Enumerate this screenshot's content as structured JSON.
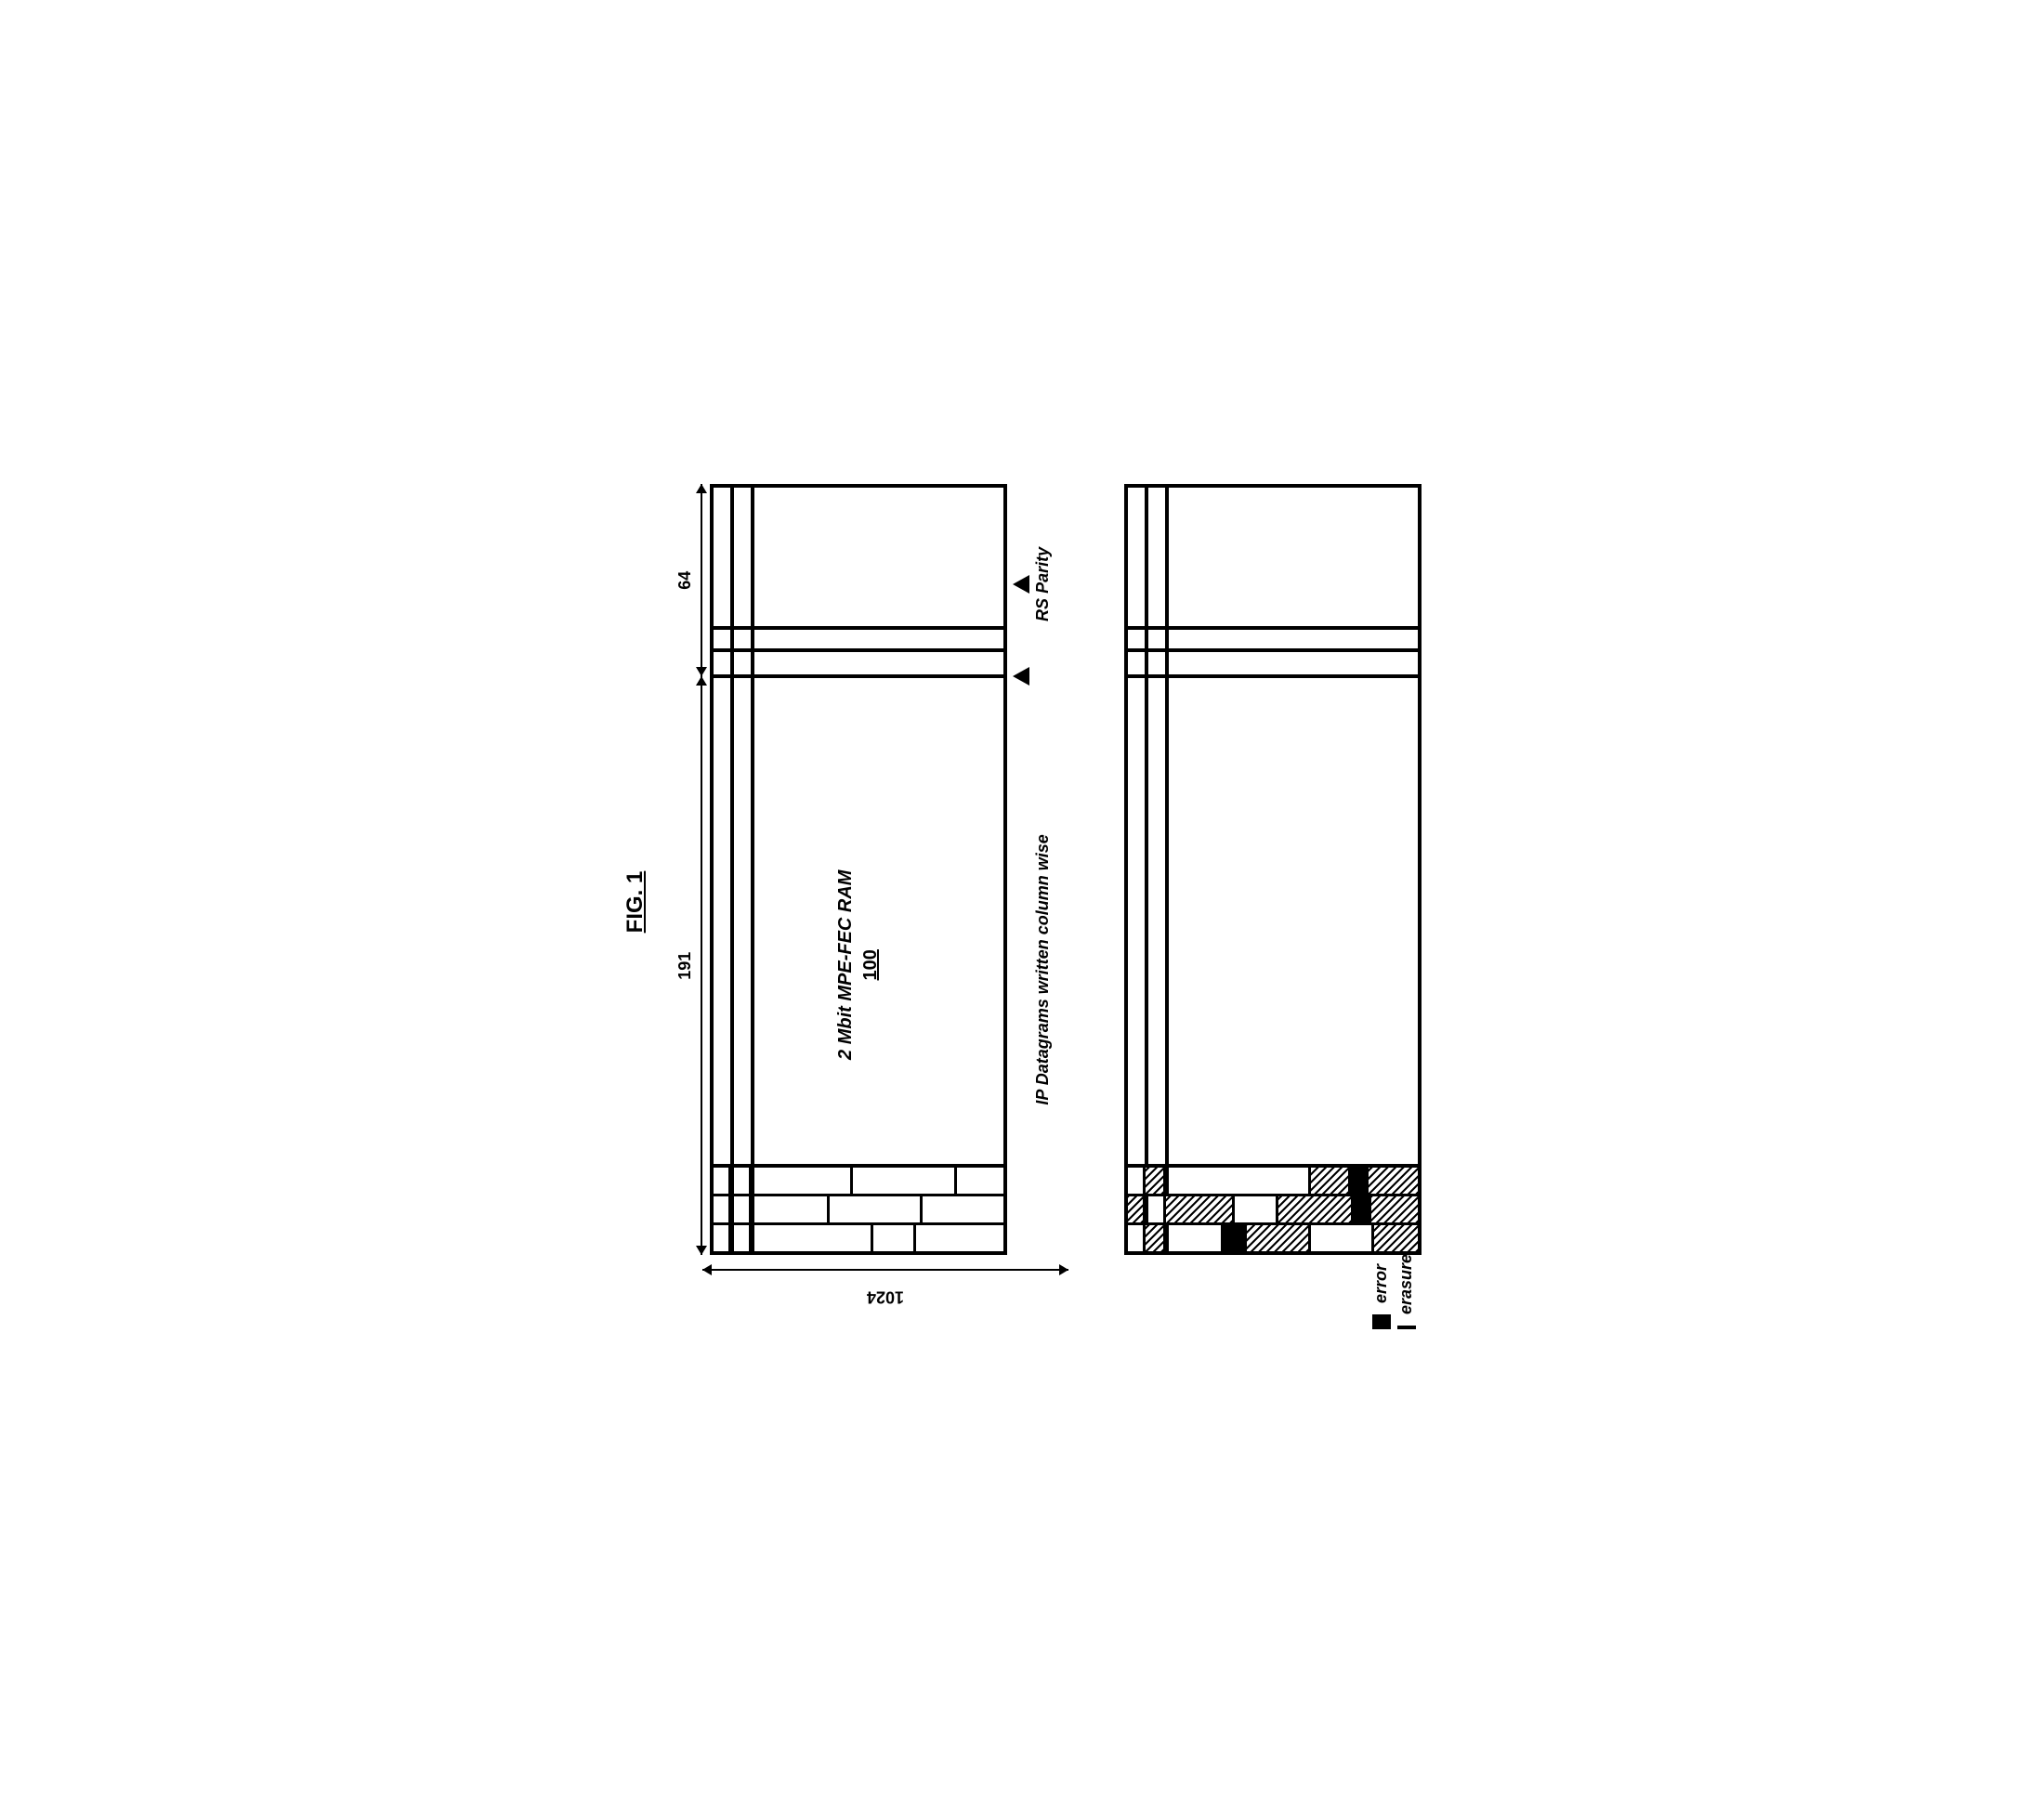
{
  "figure": {
    "title": "FIG. 1",
    "title_fontsize": 24
  },
  "top_frame": {
    "width_main": "191",
    "width_parity": "64",
    "height_rows": "1024",
    "center_label": "2 Mbit MPE-FEC RAM",
    "center_ref": "100",
    "arrow_label_main": "IP Datagrams written column wise",
    "arrow_label_parity": "RS Parity",
    "parity_inner_col_positions_pct": [
      12,
      24
    ],
    "brick_cols": [
      {
        "heights_pct": [
          6,
          7,
          42,
          15,
          30
        ]
      },
      {
        "heights_pct": [
          6,
          7,
          27,
          32,
          28
        ]
      },
      {
        "heights_pct": [
          6,
          7,
          35,
          36,
          16
        ]
      }
    ]
  },
  "bottom_frame": {
    "parity_inner_col_positions_pct": [
      12,
      24
    ],
    "brick_cols": [
      {
        "cells": [
          {
            "h": 6,
            "fill": "none"
          },
          {
            "h": 7,
            "fill": "era"
          },
          {
            "h": 20,
            "fill": "none"
          },
          {
            "h": 8,
            "fill": "err"
          },
          {
            "h": 22,
            "fill": "era"
          },
          {
            "h": 22,
            "fill": "none"
          },
          {
            "h": 15,
            "fill": "era"
          }
        ]
      },
      {
        "cells": [
          {
            "h": 6,
            "fill": "era"
          },
          {
            "h": 7,
            "fill": "none"
          },
          {
            "h": 24,
            "fill": "era"
          },
          {
            "h": 15,
            "fill": "none"
          },
          {
            "h": 26,
            "fill": "era"
          },
          {
            "h": 6,
            "fill": "err"
          },
          {
            "h": 16,
            "fill": "era"
          }
        ]
      },
      {
        "cells": [
          {
            "h": 6,
            "fill": "none"
          },
          {
            "h": 7,
            "fill": "era"
          },
          {
            "h": 50,
            "fill": "none"
          },
          {
            "h": 14,
            "fill": "era"
          },
          {
            "h": 6,
            "fill": "err"
          },
          {
            "h": 17,
            "fill": "era"
          }
        ]
      }
    ]
  },
  "legend": {
    "error": "error",
    "erasure": "erasure"
  },
  "colors": {
    "line": "#000000",
    "background": "#ffffff"
  }
}
